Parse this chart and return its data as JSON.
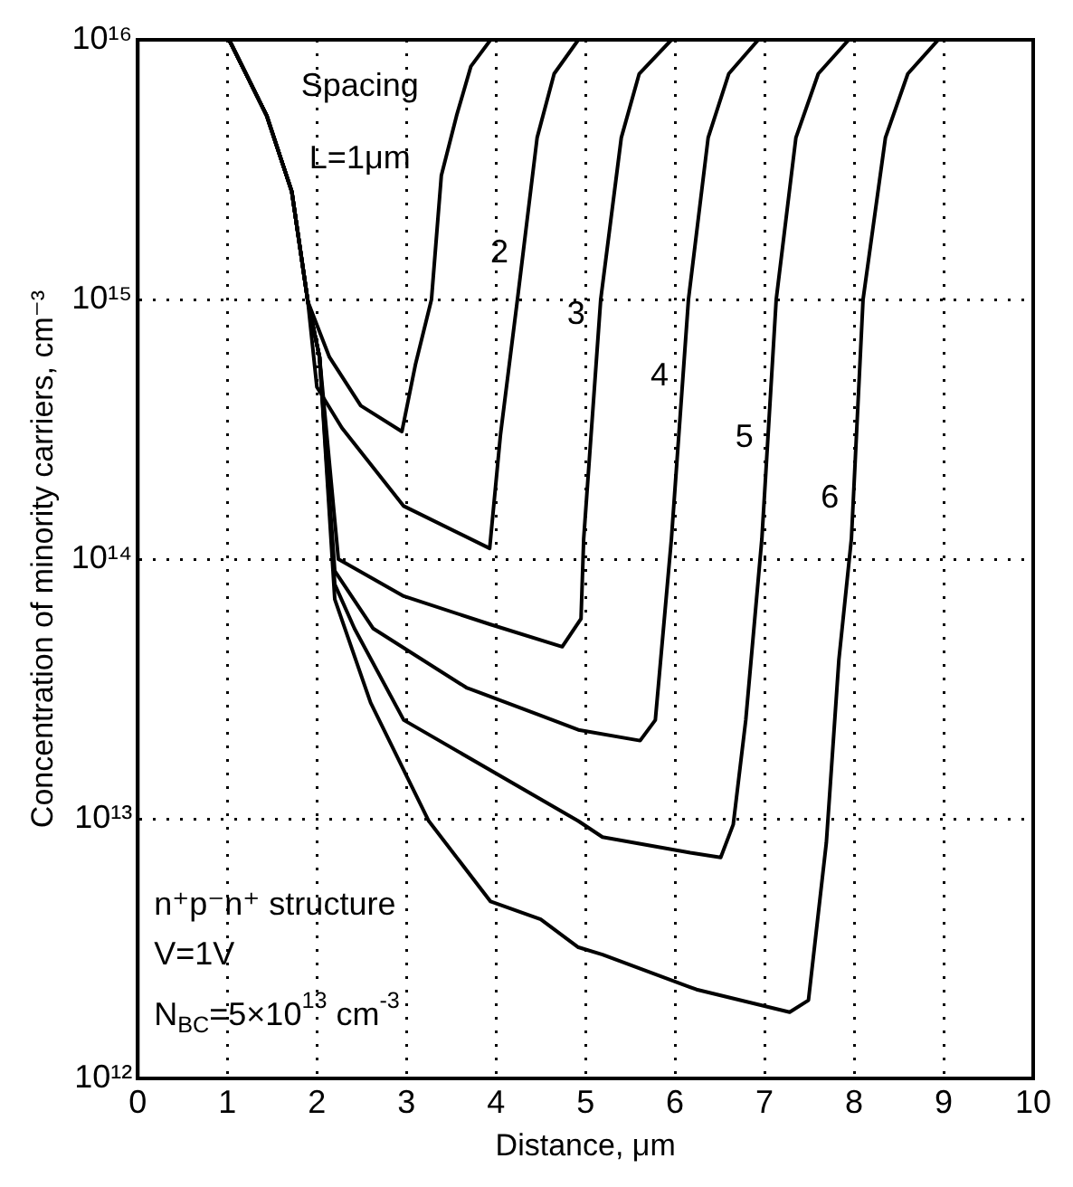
{
  "chart_data": {
    "type": "line",
    "xlabel": "Distance, μm",
    "ylabel": "Concentration of minority carriers, cm⁻³",
    "annotations": [
      "Spacing",
      "n⁺p⁻n⁺ structure",
      "V=1V",
      "N$_{BC}$=5×10$^{13}$ cm$^{-3}$"
    ],
    "series": [
      {
        "name": "L=1μm",
        "color": "#000000",
        "x": [
          1.02,
          1.44,
          1.72,
          1.9,
          2.14,
          2.49,
          2.95,
          3.1,
          3.28,
          3.39,
          3.56,
          3.72,
          3.94
        ],
        "values": [
          1e+16,
          5100000000000000.0,
          2600000000000000.0,
          980000000000000.0,
          600000000000000.0,
          390000000000000.0,
          310000000000000.0,
          560000000000000.0,
          1000000000000000.0,
          3000000000000000.0,
          5100000000000000.0,
          7900000000000000.0,
          1e+16
        ]
      },
      {
        "name": "2",
        "color": "#000000",
        "x": [
          1.02,
          1.44,
          1.72,
          1.9,
          2.0,
          2.28,
          2.97,
          3.93,
          4.05,
          4.24,
          4.46,
          4.65,
          4.92
        ],
        "values": [
          1e+16,
          5100000000000000.0,
          2600000000000000.0,
          980000000000000.0,
          460000000000000.0,
          320000000000000.0,
          160000000000000.0,
          110000000000000.0,
          300000000000000.0,
          1000000000000000.0,
          4200000000000000.0,
          7400000000000000.0,
          1e+16
        ]
      },
      {
        "name": "3",
        "color": "#000000",
        "x": [
          1.02,
          1.44,
          1.72,
          1.9,
          2.03,
          2.24,
          2.97,
          3.94,
          4.74,
          4.95,
          4.98,
          5.17,
          5.4,
          5.6,
          5.96
        ],
        "values": [
          1e+16,
          5100000000000000.0,
          2600000000000000.0,
          980000000000000.0,
          600000000000000.0,
          100000000000000.0,
          72000000000000.0,
          56000000000000.0,
          46000000000000.0,
          59000000000000.0,
          120000000000000.0,
          1000000000000000.0,
          4200000000000000.0,
          7400000000000000.0,
          1e+16
        ]
      },
      {
        "name": "4",
        "color": "#000000",
        "x": [
          1.02,
          1.44,
          1.72,
          1.9,
          2.03,
          2.2,
          2.63,
          3.67,
          4.5,
          4.92,
          5.61,
          5.78,
          5.96,
          6.15,
          6.37,
          6.6,
          6.93
        ],
        "values": [
          1e+16,
          5100000000000000.0,
          2600000000000000.0,
          980000000000000.0,
          600000000000000.0,
          90000000000000.0,
          54000000000000.0,
          32000000000000.0,
          25000000000000.0,
          22000000000000.0,
          20000000000000.0,
          24000000000000.0,
          120000000000000.0,
          1000000000000000.0,
          4200000000000000.0,
          7400000000000000.0,
          1e+16
        ]
      },
      {
        "name": "5",
        "color": "#000000",
        "x": [
          1.02,
          1.44,
          1.72,
          1.9,
          2.03,
          2.2,
          2.42,
          2.97,
          4.92,
          5.19,
          6.17,
          6.51,
          6.65,
          6.79,
          6.97,
          7.13,
          7.35,
          7.6,
          7.94
        ],
        "values": [
          1e+16,
          5100000000000000.0,
          2600000000000000.0,
          980000000000000.0,
          600000000000000.0,
          80000000000000.0,
          54000000000000.0,
          24000000000000.0,
          9800000000000.0,
          8500000000000.0,
          7400000000000.0,
          7100000000000.0,
          9500000000000.0,
          24000000000000.0,
          120000000000000.0,
          1000000000000000.0,
          4200000000000000.0,
          7400000000000000.0,
          1e+16
        ]
      },
      {
        "name": "6",
        "color": "#000000",
        "x": [
          1.02,
          1.44,
          1.72,
          1.9,
          2.03,
          2.2,
          2.6,
          3.25,
          3.94,
          4.5,
          4.92,
          5.19,
          6.24,
          7.28,
          7.49,
          7.69,
          7.83,
          7.97,
          8.1,
          8.35,
          8.6,
          8.94
        ],
        "values": [
          1e+16,
          5100000000000000.0,
          2600000000000000.0,
          980000000000000.0,
          600000000000000.0,
          70000000000000.0,
          28000000000000.0,
          9800000000000.0,
          4800000000000.0,
          4100000000000.0,
          3200000000000.0,
          3000000000000.0,
          2200000000000.0,
          1800000000000.0,
          2000000000000.0,
          8100000000000.0,
          41000000000000.0,
          120000000000000.0,
          1000000000000000.0,
          4200000000000000.0,
          7400000000000000.0,
          1e+16
        ]
      }
    ],
    "xlim": [
      0,
      10
    ],
    "xticks": [
      0,
      1,
      2,
      3,
      4,
      5,
      6,
      7,
      8,
      9,
      10
    ],
    "ylim": [
      1000000000000.0,
      1e+16
    ],
    "yticks": [
      {
        "value": 1000000000000.0,
        "label": "10¹²"
      },
      {
        "value": 10000000000000.0,
        "label": "10¹³"
      },
      {
        "value": 100000000000000.0,
        "label": "10¹⁴"
      },
      {
        "value": 1000000000000000.0,
        "label": "10¹⁵"
      },
      {
        "value": 1e+16,
        "label": "10¹⁶"
      }
    ],
    "log": "y",
    "grid": true,
    "marker": "none",
    "line_style": "solid"
  }
}
